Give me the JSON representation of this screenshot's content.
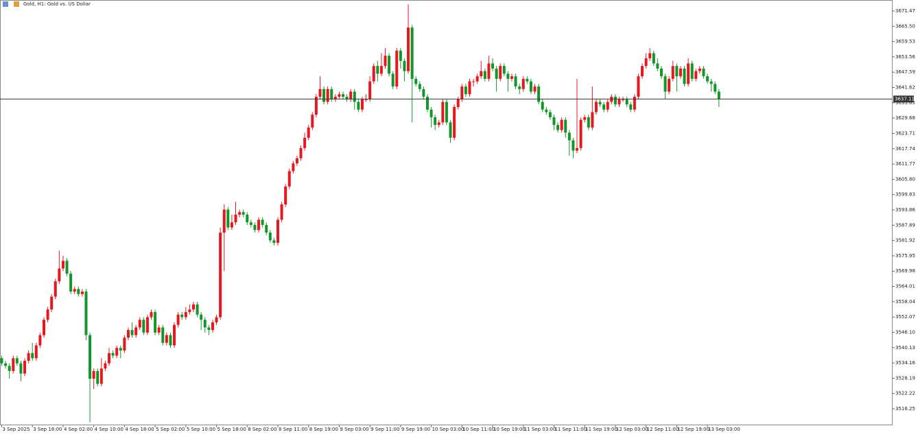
{
  "chart_data": {
    "type": "candlestick",
    "title": "Gold, H1: Gold vs. US Dollar",
    "categories": [
      "3 Sep 2025",
      null,
      null,
      null,
      null,
      null,
      null,
      null,
      "3 Sep 18:00",
      null,
      null,
      null,
      null,
      null,
      null,
      null,
      "4 Sep 02:00",
      null,
      null,
      null,
      null,
      null,
      null,
      null,
      "4 Sep 10:00",
      null,
      null,
      null,
      null,
      null,
      null,
      null,
      "4 Sep 18:00",
      null,
      null,
      null,
      null,
      null,
      null,
      null,
      "5 Sep 02:00",
      null,
      null,
      null,
      null,
      null,
      null,
      null,
      "5 Sep 10:00",
      null,
      null,
      null,
      null,
      null,
      null,
      null,
      "5 Sep 18:00",
      null,
      null,
      null,
      null,
      null,
      null,
      null,
      "8 Sep 02:00",
      null,
      null,
      null,
      null,
      null,
      null,
      null,
      "8 Sep 11:00",
      null,
      null,
      null,
      null,
      null,
      null,
      null,
      "8 Sep 19:00",
      null,
      null,
      null,
      null,
      null,
      null,
      null,
      "9 Sep 03:00",
      null,
      null,
      null,
      null,
      null,
      null,
      null,
      "9 Sep 11:00",
      null,
      null,
      null,
      null,
      null,
      null,
      null,
      "9 Sep 19:00",
      null,
      null,
      null,
      null,
      null,
      null,
      null,
      "10 Sep 03:00",
      null,
      null,
      null,
      null,
      null,
      null,
      null,
      "10 Sep 11:00",
      null,
      null,
      null,
      null,
      null,
      null,
      null,
      "10 Sep 19:00",
      null,
      null,
      null,
      null,
      null,
      null,
      null,
      "11 Sep 03:00",
      null,
      null,
      null,
      null,
      null,
      null,
      null,
      "11 Sep 11:00",
      null,
      null,
      null,
      null,
      null,
      null,
      null,
      "11 Sep 19:00",
      null,
      null,
      null,
      null,
      null,
      null,
      null,
      "12 Sep 03:00",
      null,
      null,
      null,
      null,
      null,
      null,
      null,
      "12 Sep 11:00",
      null,
      null,
      null,
      null,
      null,
      null,
      null,
      "12 Sep 19:00",
      null,
      null,
      null,
      null,
      null,
      null,
      null,
      "13 Sep 03:00",
      null,
      null,
      null
    ],
    "open": [
      3536,
      3534,
      3533,
      3531,
      3536,
      3534,
      3530,
      3535,
      3538,
      3536,
      3541,
      3545,
      3551,
      3555,
      3560,
      3566,
      3571,
      3574,
      3569,
      3562,
      3563,
      3561,
      3562,
      3545,
      3528,
      3531,
      3526,
      3532,
      3534,
      3538,
      3537,
      3540,
      3539,
      3544,
      3547,
      3545,
      3548,
      3551,
      3546,
      3552,
      3554,
      3546,
      3548,
      3542,
      3545,
      3541,
      3549,
      3553,
      3552,
      3554,
      3555,
      3557,
      3553,
      3551,
      3548,
      3547,
      3550,
      3552,
      3585,
      3594,
      3587,
      3589,
      3592,
      3593,
      3592,
      3589,
      3588,
      3586,
      3590,
      3588,
      3585,
      3582,
      3581,
      3590,
      3596,
      3603,
      3609,
      3612,
      3614,
      3618,
      3622,
      3626,
      3631,
      3638,
      3641,
      3636,
      3641,
      3637,
      3638,
      3639,
      3638,
      3637,
      3640,
      3636,
      3633,
      3637,
      3637,
      3644,
      3650,
      3647,
      3650,
      3654,
      3647,
      3642,
      3656,
      3652,
      3648,
      3665,
      3645,
      3643,
      3641,
      3638,
      3633,
      3630,
      3627,
      3628,
      3636,
      3628,
      3622,
      3634,
      3637,
      3642,
      3639,
      3644,
      3644,
      3646,
      3648,
      3645,
      3651,
      3649,
      3645,
      3650,
      3647,
      3645,
      3646,
      3642,
      3641,
      3645,
      3644,
      3640,
      3642,
      3636,
      3633,
      3632,
      3630,
      3627,
      3625,
      3629,
      3624,
      3621,
      3617,
      3618,
      3629,
      3630,
      3626,
      3632,
      3636,
      3635,
      3633,
      3636,
      3638,
      3635,
      3637,
      3637,
      3635,
      3633,
      3638,
      3646,
      3650,
      3653,
      3655,
      3651,
      3649,
      3646,
      3640,
      3645,
      3650,
      3646,
      3649,
      3643,
      3651,
      3645,
      3648,
      3649,
      3646,
      3644,
      3643,
      3640
    ],
    "high": [
      3537,
      3535,
      3534,
      3537,
      3537,
      3535,
      3536,
      3539,
      3542,
      3542,
      3546,
      3552,
      3556,
      3561,
      3567,
      3578,
      3576,
      3575,
      3570,
      3564,
      3564,
      3563,
      3563,
      3546,
      3532,
      3532,
      3536,
      3535,
      3540,
      3539,
      3541,
      3541,
      3545,
      3548,
      3550,
      3549,
      3552,
      3552,
      3553,
      3555,
      3555,
      3549,
      3549,
      3546,
      3546,
      3550,
      3554,
      3554,
      3556,
      3557,
      3558,
      3558,
      3554,
      3552,
      3549,
      3551,
      3553,
      3587,
      3596,
      3595,
      3592,
      3597,
      3594,
      3594,
      3593,
      3590,
      3589,
      3591,
      3591,
      3589,
      3586,
      3583,
      3591,
      3597,
      3604,
      3610,
      3613,
      3615,
      3619,
      3624,
      3627,
      3632,
      3639,
      3646,
      3642,
      3642,
      3642,
      3639,
      3640,
      3640,
      3639,
      3641,
      3641,
      3637,
      3638,
      3639,
      3646,
      3651,
      3652,
      3655,
      3657,
      3655,
      3648,
      3657,
      3657,
      3653,
      3674,
      3666,
      3646,
      3644,
      3642,
      3639,
      3634,
      3631,
      3629,
      3637,
      3637,
      3629,
      3635,
      3638,
      3643,
      3643,
      3645,
      3645,
      3647,
      3652,
      3649,
      3654,
      3653,
      3650,
      3651,
      3651,
      3648,
      3647,
      3647,
      3643,
      3646,
      3646,
      3645,
      3643,
      3643,
      3637,
      3634,
      3633,
      3631,
      3628,
      3630,
      3630,
      3625,
      3622,
      3645,
      3630,
      3631,
      3631,
      3642,
      3637,
      3637,
      3636,
      3637,
      3639,
      3639,
      3638,
      3638,
      3638,
      3636,
      3639,
      3647,
      3651,
      3655,
      3657,
      3656,
      3653,
      3650,
      3647,
      3646,
      3652,
      3651,
      3650,
      3650,
      3653,
      3652,
      3649,
      3650,
      3650,
      3647,
      3645,
      3644,
      3641
    ],
    "low": [
      3533,
      3532,
      3528,
      3530,
      3533,
      3527,
      3529,
      3534,
      3535,
      3535,
      3540,
      3544,
      3550,
      3554,
      3559,
      3565,
      3570,
      3568,
      3561,
      3561,
      3560,
      3560,
      3543,
      3511,
      3524,
      3525,
      3525,
      3531,
      3533,
      3536,
      3536,
      3536,
      3538,
      3543,
      3544,
      3544,
      3547,
      3545,
      3545,
      3551,
      3545,
      3545,
      3541,
      3541,
      3540,
      3540,
      3548,
      3551,
      3551,
      3553,
      3554,
      3552,
      3547,
      3546,
      3545,
      3546,
      3549,
      3551,
      3570,
      3586,
      3586,
      3588,
      3591,
      3591,
      3588,
      3587,
      3585,
      3585,
      3587,
      3584,
      3581,
      3580,
      3580,
      3589,
      3595,
      3602,
      3608,
      3611,
      3613,
      3617,
      3621,
      3625,
      3630,
      3637,
      3635,
      3635,
      3636,
      3636,
      3637,
      3637,
      3636,
      3636,
      3633,
      3632,
      3632,
      3636,
      3636,
      3643,
      3644,
      3646,
      3649,
      3646,
      3641,
      3641,
      3649,
      3644,
      3647,
      3628,
      3642,
      3640,
      3637,
      3632,
      3626,
      3625,
      3626,
      3627,
      3627,
      3620,
      3621,
      3633,
      3636,
      3638,
      3638,
      3642,
      3643,
      3645,
      3644,
      3644,
      3648,
      3640,
      3644,
      3646,
      3640,
      3644,
      3641,
      3639,
      3640,
      3643,
      3639,
      3639,
      3635,
      3632,
      3631,
      3629,
      3625,
      3624,
      3624,
      3622,
      3615,
      3614,
      3616,
      3617,
      3628,
      3625,
      3625,
      3631,
      3634,
      3632,
      3632,
      3635,
      3634,
      3634,
      3636,
      3634,
      3632,
      3632,
      3637,
      3645,
      3649,
      3652,
      3650,
      3648,
      3645,
      3637,
      3639,
      3644,
      3640,
      3645,
      3642,
      3642,
      3644,
      3644,
      3647,
      3645,
      3643,
      3640,
      3639,
      3634
    ],
    "close": [
      3534,
      3533,
      3531,
      3536,
      3534,
      3530,
      3535,
      3538,
      3536,
      3541,
      3545,
      3551,
      3555,
      3560,
      3566,
      3571,
      3574,
      3569,
      3562,
      3563,
      3561,
      3562,
      3545,
      3528,
      3531,
      3526,
      3532,
      3534,
      3538,
      3537,
      3540,
      3539,
      3544,
      3547,
      3545,
      3548,
      3551,
      3546,
      3552,
      3554,
      3546,
      3548,
      3542,
      3545,
      3541,
      3549,
      3553,
      3552,
      3554,
      3555,
      3557,
      3553,
      3551,
      3548,
      3547,
      3550,
      3552,
      3585,
      3594,
      3587,
      3589,
      3592,
      3593,
      3592,
      3589,
      3588,
      3586,
      3590,
      3588,
      3585,
      3582,
      3581,
      3590,
      3596,
      3603,
      3609,
      3612,
      3614,
      3618,
      3622,
      3626,
      3631,
      3638,
      3641,
      3636,
      3641,
      3637,
      3638,
      3639,
      3638,
      3637,
      3640,
      3636,
      3633,
      3637,
      3637,
      3644,
      3650,
      3647,
      3650,
      3654,
      3647,
      3642,
      3656,
      3652,
      3648,
      3665,
      3645,
      3643,
      3641,
      3638,
      3633,
      3630,
      3627,
      3628,
      3636,
      3628,
      3622,
      3634,
      3637,
      3642,
      3639,
      3644,
      3644,
      3646,
      3648,
      3645,
      3651,
      3649,
      3645,
      3650,
      3647,
      3645,
      3646,
      3642,
      3641,
      3645,
      3644,
      3640,
      3642,
      3636,
      3633,
      3632,
      3630,
      3627,
      3625,
      3629,
      3624,
      3621,
      3617,
      3618,
      3629,
      3630,
      3626,
      3632,
      3636,
      3635,
      3633,
      3636,
      3638,
      3635,
      3637,
      3637,
      3635,
      3633,
      3638,
      3646,
      3650,
      3653,
      3655,
      3651,
      3649,
      3646,
      3640,
      3645,
      3650,
      3646,
      3649,
      3643,
      3651,
      3645,
      3648,
      3649,
      3646,
      3644,
      3643,
      3640,
      3637.11
    ],
    "up_color": "#e8161d",
    "down_color": "#12962a",
    "current_price": 3637.11,
    "ylim": [
      3509.83,
      3675.75
    ],
    "yticks": [
      3671.47,
      {
        "value": 3665.5,
        "label": "3665.50"
      },
      3659.53,
      3653.56,
      3647.59,
      3641.62,
      3635.65,
      3629.68,
      3623.71,
      3617.74,
      3611.77,
      {
        "value": 3605.8,
        "label": "3605.80"
      },
      3599.83,
      3593.86,
      3587.89,
      3581.92,
      3575.95,
      3569.98,
      3564.01,
      3558.04,
      3552.07,
      {
        "value": 3546.1,
        "label": "3546.10"
      },
      3540.13,
      3534.16,
      3528.19,
      3522.22,
      3516.25
    ],
    "grid": false
  }
}
